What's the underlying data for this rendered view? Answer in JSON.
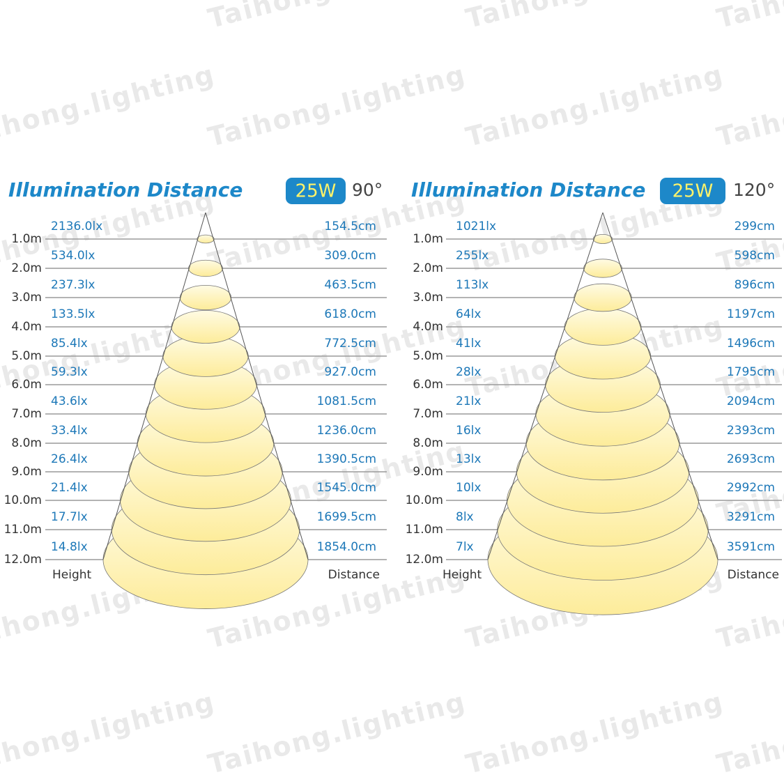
{
  "watermark": "Taihong.lighting",
  "panels": [
    {
      "title": "Illumination Distance",
      "power": "25W",
      "angle": "90°",
      "heights": [
        "1.0m",
        "2.0m",
        "3.0m",
        "4.0m",
        "5.0m",
        "6.0m",
        "7.0m",
        "8.0m",
        "9.0m",
        "10.0m",
        "11.0m",
        "12.0m"
      ],
      "lux": [
        "2136.0lx",
        "534.0lx",
        "237.3lx",
        "133.5lx",
        "85.4lx",
        "59.3lx",
        "43.6lx",
        "33.4lx",
        "26.4lx",
        "21.4lx",
        "17.7lx",
        "14.8lx"
      ],
      "distance": [
        "154.5cm",
        "309.0cm",
        "463.5cm",
        "618.0cm",
        "772.5cm",
        "927.0cm",
        "1081.5cm",
        "1236.0cm",
        "1390.5cm",
        "1545.0cm",
        "1699.5cm",
        "1854.0cm"
      ],
      "height_label": "Height",
      "distance_label": "Distance"
    },
    {
      "title": "Illumination Distance",
      "power": "25W",
      "angle": "120°",
      "heights": [
        "1.0m",
        "2.0m",
        "3.0m",
        "4.0m",
        "5.0m",
        "6.0m",
        "7.0m",
        "8.0m",
        "9.0m",
        "10.0m",
        "11.0m",
        "12.0m"
      ],
      "lux": [
        "1021lx",
        "255lx",
        "113lx",
        "64lx",
        "41lx",
        "28lx",
        "21lx",
        "16lx",
        "13lx",
        "10lx",
        "8lx",
        "7lx"
      ],
      "distance": [
        "299cm",
        "598cm",
        "896cm",
        "1197cm",
        "1496cm",
        "1795cm",
        "2094cm",
        "2393cm",
        "2693cm",
        "2992cm",
        "3291cm",
        "3591cm"
      ],
      "height_label": "Height",
      "distance_label": "Distance"
    }
  ]
}
